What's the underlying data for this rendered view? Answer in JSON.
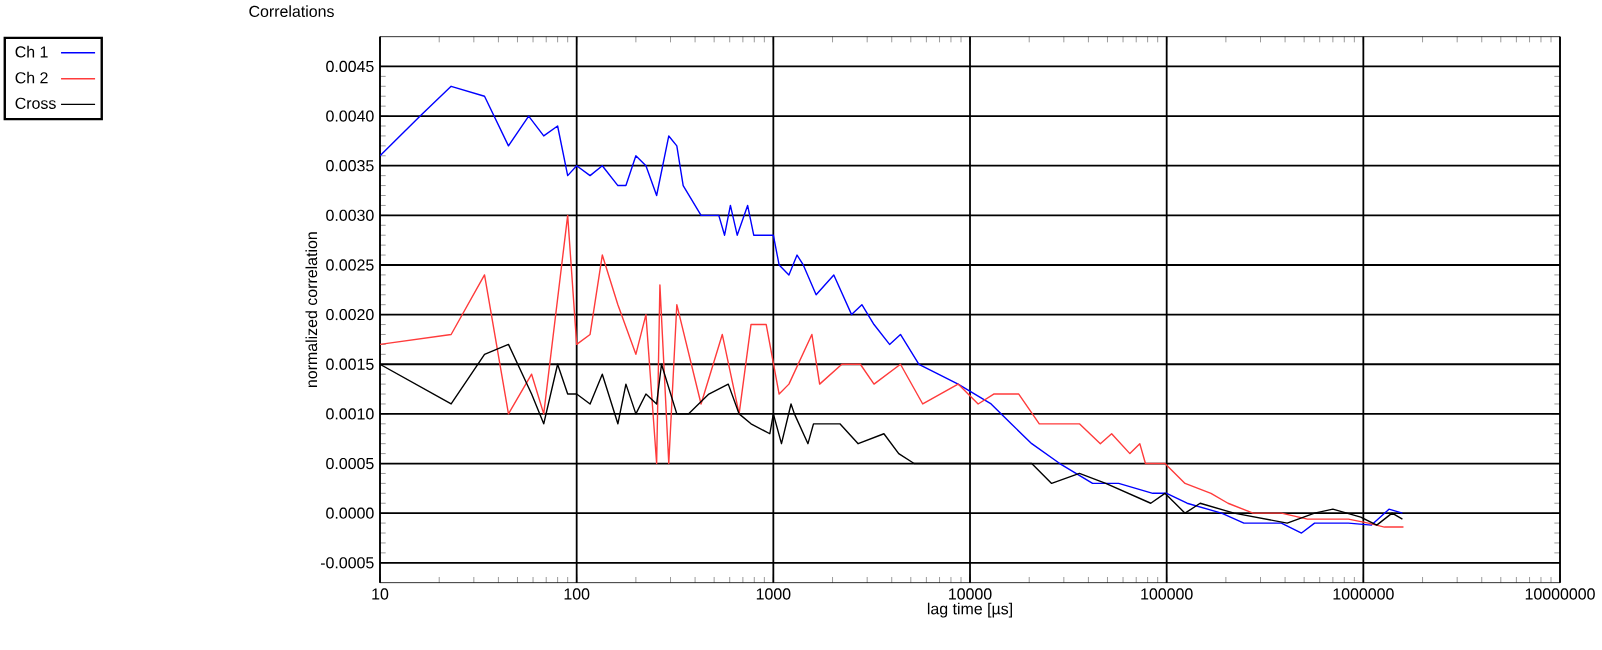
{
  "chart_data": {
    "type": "line",
    "title": "Correlations",
    "xlabel": "lag time [µs]",
    "ylabel": "normalized correlation",
    "log": "x",
    "grid": true,
    "legend": "top left",
    "marker": "none",
    "line_style": "solid",
    "xlim": [
      10,
      10000000
    ],
    "ylim": [
      -0.0007,
      0.0048
    ],
    "xticks": [
      10,
      100,
      1000,
      10000,
      100000,
      1000000,
      10000000
    ],
    "yticks": [
      {
        "value": -0.0005,
        "label": "-0.0005"
      },
      {
        "value": 0,
        "label": "0.0000"
      },
      {
        "value": 0.0005,
        "label": "0.0005"
      },
      {
        "value": 0.001,
        "label": "0.0010"
      },
      {
        "value": 0.0015,
        "label": "0.0015"
      },
      {
        "value": 0.002,
        "label": "0.0020"
      },
      {
        "value": 0.0025,
        "label": "0.0025"
      },
      {
        "value": 0.003,
        "label": "0.0030"
      },
      {
        "value": 0.0035,
        "label": "0.0035"
      },
      {
        "value": 0.004,
        "label": "0.0040"
      },
      {
        "value": 0.0045,
        "label": "0.0045"
      }
    ],
    "series": [
      {
        "name": "Ch 1",
        "color": "#0000ff",
        "x": [
          10,
          16,
          23,
          34,
          45,
          57,
          68,
          80,
          90,
          100,
          117,
          135,
          162,
          178,
          200,
          225,
          255,
          294,
          323,
          348,
          429,
          528,
          565,
          605,
          655,
          740,
          795,
          960,
          1000,
          1070,
          1200,
          1320,
          1420,
          1650,
          2030,
          2500,
          2820,
          3250,
          3900,
          4430,
          5500,
          6900,
          8700,
          12800,
          16200,
          20600,
          28600,
          42000,
          57000,
          85000,
          100000,
          127000,
          190000,
          247000,
          310000,
          383000,
          485000,
          565000,
          840000,
          1100000,
          1350000,
          1580000
        ],
        "values": [
          0.0036,
          0.004,
          0.0043,
          0.0042,
          0.0037,
          0.004,
          0.0038,
          0.0039,
          0.0034,
          0.0035,
          0.0034,
          0.0035,
          0.0033,
          0.0033,
          0.0036,
          0.0035,
          0.0032,
          0.0038,
          0.0037,
          0.0033,
          0.003,
          0.003,
          0.0028,
          0.0031,
          0.0028,
          0.0031,
          0.0028,
          0.0028,
          0.0028,
          0.0025,
          0.0024,
          0.0026,
          0.0025,
          0.0022,
          0.0024,
          0.002,
          0.0021,
          0.0019,
          0.0017,
          0.0018,
          0.0015,
          0.0014,
          0.0013,
          0.0011,
          0.0009,
          0.0007,
          0.0005,
          0.0003,
          0.0003,
          0.0002,
          0.0002,
          0.0001,
          0.0,
          -0.0001,
          -0.0001,
          -0.0001,
          -0.0002,
          -0.0001,
          -0.0001,
          -0.00012,
          4e-05,
          0.0
        ]
      },
      {
        "name": "Ch 2",
        "color": "#ff3b3b",
        "x": [
          10,
          23,
          34,
          45,
          59,
          68,
          90,
          100,
          117,
          135,
          162,
          200,
          225,
          255,
          265,
          294,
          323,
          429,
          550,
          670,
          770,
          920,
          1070,
          1200,
          1570,
          1720,
          2230,
          2770,
          3250,
          4430,
          5750,
          8700,
          11000,
          13200,
          17700,
          22500,
          36000,
          46000,
          52500,
          65000,
          73000,
          78000,
          98000,
          124000,
          168000,
          205000,
          275000,
          383000,
          520000,
          840000,
          1060000,
          1280000,
          1600000
        ],
        "values": [
          0.0017,
          0.0018,
          0.0024,
          0.001,
          0.0014,
          0.001,
          0.003,
          0.0017,
          0.0018,
          0.0026,
          0.0021,
          0.0016,
          0.002,
          0.0005,
          0.0023,
          0.0005,
          0.0021,
          0.0011,
          0.0018,
          0.001,
          0.0019,
          0.0019,
          0.0012,
          0.0013,
          0.0018,
          0.0013,
          0.0015,
          0.0015,
          0.0013,
          0.0015,
          0.0011,
          0.0013,
          0.0011,
          0.0012,
          0.0012,
          0.0009,
          0.0009,
          0.0007,
          0.0008,
          0.0006,
          0.0007,
          0.0005,
          0.0005,
          0.0003,
          0.0002,
          0.0001,
          0.0,
          0.0,
          -6e-05,
          -6e-05,
          -0.0001,
          -0.00014,
          -0.00014
        ]
      },
      {
        "name": "Cross",
        "color": "#000000",
        "x": [
          10,
          23,
          34,
          45,
          59,
          68,
          80,
          90,
          100,
          117,
          135,
          162,
          178,
          200,
          225,
          255,
          270,
          323,
          370,
          470,
          590,
          670,
          770,
          960,
          1000,
          1100,
          1230,
          1280,
          1500,
          1600,
          2180,
          2700,
          3650,
          4340,
          5200,
          8700,
          11000,
          20600,
          26000,
          36000,
          49000,
          83000,
          98000,
          124000,
          148000,
          220000,
          410000,
          565000,
          700000,
          970000,
          1170000,
          1400000,
          1580000
        ],
        "values": [
          0.0015,
          0.0011,
          0.0016,
          0.0017,
          0.0012,
          0.0009,
          0.0015,
          0.0012,
          0.0012,
          0.0011,
          0.0014,
          0.0009,
          0.0013,
          0.001,
          0.0012,
          0.0011,
          0.0015,
          0.001,
          0.001,
          0.0012,
          0.0013,
          0.001,
          0.0009,
          0.0008,
          0.001,
          0.0007,
          0.0011,
          0.001,
          0.0007,
          0.0009,
          0.0009,
          0.0007,
          0.0008,
          0.0006,
          0.0005,
          0.0005,
          0.0005,
          0.0005,
          0.0003,
          0.0004,
          0.0003,
          0.0001,
          0.0002,
          0.0,
          0.0001,
          0.0,
          -0.0001,
          0.0,
          4e-05,
          -4e-05,
          -0.00012,
          0.0,
          -6e-05
        ]
      }
    ]
  }
}
